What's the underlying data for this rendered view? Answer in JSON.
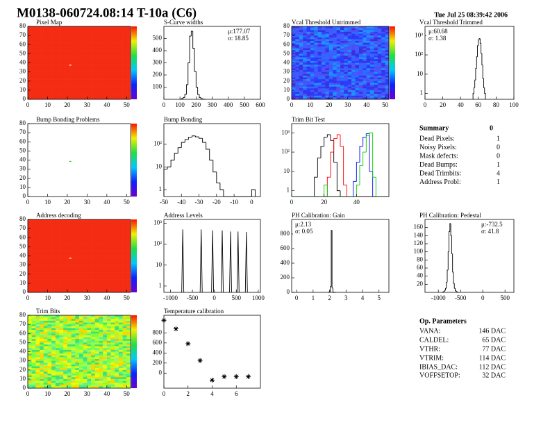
{
  "header": {
    "title": "M0138-060724.08:14 T-10a (C6)",
    "date": "Tue Jul 25 08:39:42 2006"
  },
  "chart_data": [
    {
      "type": "heatmap",
      "title": "Pixel Map",
      "xlim": [
        0,
        52
      ],
      "ylim": [
        0,
        80
      ],
      "xticks": [
        0,
        10,
        20,
        30,
        40,
        50
      ],
      "yticks": [
        0,
        10,
        20,
        30,
        40,
        50,
        60,
        70,
        80
      ],
      "colors": [
        "#f42c14"
      ],
      "colorbar": true,
      "marked": [
        {
          "x": 21,
          "y": 37,
          "color": "#ffffff"
        }
      ]
    },
    {
      "type": "histogram",
      "title": "S-Curve widths",
      "xlim": [
        0,
        600
      ],
      "ylim": [
        0,
        600
      ],
      "xticks": [
        0,
        100,
        200,
        300,
        400,
        500,
        600
      ],
      "yticks": [
        100,
        200,
        300,
        400,
        500
      ],
      "bins": [
        100,
        110,
        120,
        130,
        140,
        150,
        160,
        170,
        180,
        190,
        200,
        210,
        220,
        230,
        240,
        250,
        260
      ],
      "values": [
        2,
        5,
        15,
        40,
        120,
        300,
        520,
        560,
        420,
        230,
        100,
        40,
        15,
        6,
        2,
        1
      ],
      "color": "#000000",
      "stats": [
        "μ:177.07",
        "σ: 18.85"
      ],
      "stats_corner": "top-right"
    },
    {
      "type": "heatmap",
      "title": "Vcal Threshold Untrimmed",
      "xlim": [
        0,
        52
      ],
      "ylim": [
        0,
        80
      ],
      "xticks": [
        0,
        10,
        20,
        30,
        40,
        50
      ],
      "yticks": [
        0,
        10,
        20,
        30,
        40,
        50,
        60,
        70,
        80
      ],
      "colors": [
        "#2a3cff",
        "#3d5bff",
        "#2b6bff",
        "#4e4ff0",
        "#1e90ff",
        "#3a30e0"
      ],
      "colorbar": true,
      "marked": []
    },
    {
      "type": "histogram",
      "title": "Vcal Threshold Trimmed",
      "yscale": "log",
      "xlim": [
        0,
        100
      ],
      "ylim": [
        0.5,
        3000
      ],
      "xticks": [
        0,
        20,
        40,
        60,
        80,
        100
      ],
      "yticks": [
        1,
        10,
        {
          "value": 100,
          "label": "10²"
        },
        {
          "value": 1000,
          "label": "10³"
        }
      ],
      "bins": [
        54,
        55,
        56,
        57,
        58,
        59,
        60,
        61,
        62,
        63,
        64,
        65,
        66,
        67,
        68
      ],
      "values": [
        1,
        2,
        5,
        20,
        80,
        300,
        600,
        700,
        400,
        120,
        30,
        6,
        2,
        1
      ],
      "color": "#000000",
      "stats": [
        "μ:60.68",
        "σ: 1.38"
      ],
      "stats_corner": "top-left"
    },
    {
      "type": "heatmap",
      "title": "Bump Bonding Problems",
      "xlim": [
        0,
        52
      ],
      "ylim": [
        0,
        80
      ],
      "xticks": [
        0,
        10,
        20,
        30,
        40,
        50
      ],
      "yticks": [
        0,
        10,
        20,
        30,
        40,
        50,
        60,
        70,
        80
      ],
      "colors": [],
      "colorbar": true,
      "marked": [
        {
          "x": 21,
          "y": 38,
          "color": "#33cc33"
        }
      ]
    },
    {
      "type": "histogram",
      "title": "Bump Bonding",
      "yscale": "log",
      "xlim": [
        -50,
        5
      ],
      "ylim": [
        0.5,
        800
      ],
      "xticks": [
        -50,
        -40,
        -30,
        -20,
        -10,
        0
      ],
      "yticks": [
        1,
        10,
        {
          "value": 100,
          "label": "10²"
        }
      ],
      "bins": [
        -50,
        -48,
        -46,
        -44,
        -42,
        -40,
        -38,
        -36,
        -34,
        -32,
        -30,
        -28,
        -26,
        -24,
        -22,
        -20,
        -18,
        -16,
        -14,
        -12,
        -10,
        -8,
        -6,
        -4,
        -2,
        0,
        2
      ],
      "values": [
        8,
        10,
        20,
        40,
        70,
        120,
        160,
        200,
        230,
        210,
        180,
        120,
        60,
        20,
        6,
        2,
        1,
        0,
        0,
        0,
        0,
        0,
        0,
        0,
        0,
        1
      ],
      "color": "#000000"
    },
    {
      "type": "histogram",
      "title": "Trim Bit Test",
      "yscale": "log",
      "xlim": [
        0,
        60
      ],
      "ylim": [
        0.5,
        3000
      ],
      "xticks": [
        0,
        20,
        40
      ],
      "yticks": [
        1,
        10,
        {
          "value": 100,
          "label": "10²"
        },
        {
          "value": 1000,
          "label": "10³"
        }
      ],
      "bins": [
        0,
        2,
        4,
        6,
        8,
        10,
        12,
        14,
        16,
        18,
        20,
        22,
        24,
        26,
        28,
        30,
        32,
        34,
        36,
        38,
        40,
        42,
        44,
        46,
        48,
        50,
        52,
        54,
        56,
        58,
        60
      ],
      "series": [
        {
          "color": "#000000",
          "values": [
            0,
            0,
            0,
            0,
            0,
            0,
            0,
            5,
            50,
            200,
            600,
            800,
            400,
            30,
            1,
            0,
            0,
            0,
            0,
            0,
            0,
            0,
            0,
            0,
            0,
            0,
            0,
            0,
            0,
            0
          ]
        },
        {
          "color": "#ff0000",
          "values": [
            0,
            0,
            0,
            0,
            0,
            0,
            0,
            0,
            0,
            0,
            0,
            5,
            100,
            500,
            800,
            200,
            2,
            0,
            0,
            0,
            0,
            0,
            0,
            0,
            0,
            0,
            0,
            0,
            0,
            0
          ]
        },
        {
          "color": "#0000ff",
          "values": [
            0,
            0,
            0,
            0,
            0,
            0,
            0,
            0,
            0,
            0,
            0,
            0,
            0,
            0,
            0,
            0,
            0,
            0,
            0,
            3,
            30,
            200,
            600,
            900,
            10,
            0,
            0,
            0,
            0,
            0
          ]
        },
        {
          "color": "#00cc00",
          "values": [
            0,
            0,
            0,
            0,
            0,
            0,
            0,
            0,
            0,
            0,
            2,
            0,
            0,
            0,
            0,
            0,
            0,
            0,
            0,
            0,
            2,
            20,
            100,
            700,
            1000,
            5,
            0,
            0,
            0,
            0
          ]
        }
      ]
    },
    {
      "type": "heatmap",
      "title": "Address decoding",
      "xlim": [
        0,
        52
      ],
      "ylim": [
        0,
        80
      ],
      "xticks": [
        0,
        10,
        20,
        30,
        40,
        50
      ],
      "yticks": [
        0,
        10,
        20,
        30,
        40,
        50,
        60,
        70,
        80
      ],
      "colors": [
        "#f42c14"
      ],
      "colorbar": true,
      "marked": [
        {
          "x": 21,
          "y": 37,
          "color": "#ffffff"
        }
      ]
    },
    {
      "type": "spikes",
      "title": "Address Levels",
      "yscale": "log",
      "xlim": [
        -1150,
        1050
      ],
      "ylim": [
        0.5,
        1500
      ],
      "xticks": [
        -1000,
        -500,
        0,
        500,
        1000
      ],
      "yticks": [
        1,
        10,
        {
          "value": 100,
          "label": "10²"
        },
        {
          "value": 1000,
          "label": "10³"
        }
      ],
      "x": [
        -720,
        -300,
        -40,
        180,
        370,
        540,
        730
      ],
      "values": [
        500,
        500,
        450,
        450,
        400,
        400,
        380
      ],
      "color": "#000000"
    },
    {
      "type": "histogram",
      "title": "PH Calibration: Gain",
      "xlim": [
        -0.3,
        5.6
      ],
      "ylim": [
        0,
        1000
      ],
      "xticks": [
        0,
        1,
        2,
        3,
        4,
        5
      ],
      "yticks": [
        0,
        200,
        400,
        600,
        800
      ],
      "bins": [
        1.9,
        1.95,
        2.0,
        2.05,
        2.1,
        2.15,
        2.2,
        2.25,
        2.3,
        2.35,
        2.4
      ],
      "values": [
        0,
        2,
        10,
        80,
        850,
        60,
        5,
        1,
        0,
        0
      ],
      "color": "#000000",
      "stats": [
        "μ:2.13",
        "σ: 0.05"
      ],
      "stats_corner": "top-left"
    },
    {
      "type": "histogram",
      "title": "PH Calibration: Pedestal",
      "xlim": [
        -1300,
        700
      ],
      "ylim": [
        0,
        180
      ],
      "xticks": [
        -1000,
        -500,
        0,
        500
      ],
      "yticks": [
        20,
        40,
        60,
        80,
        100,
        120,
        140,
        160
      ],
      "bins": [
        -900,
        -880,
        -860,
        -840,
        -820,
        -800,
        -780,
        -760,
        -740,
        -720,
        -700,
        -680,
        -660,
        -640,
        -620,
        -600,
        -580,
        -560
      ],
      "values": [
        1,
        2,
        5,
        10,
        25,
        55,
        100,
        150,
        170,
        140,
        95,
        50,
        22,
        10,
        4,
        2,
        1
      ],
      "color": "#000000",
      "stats": [
        "μ:-732.5",
        "σ: 41.8"
      ],
      "stats_corner": "top-right"
    },
    {
      "type": "heatmap",
      "title": "Trim Bits",
      "xlim": [
        0,
        52
      ],
      "ylim": [
        0,
        80
      ],
      "xticks": [
        0,
        10,
        20,
        30,
        40,
        50
      ],
      "yticks": [
        0,
        10,
        20,
        30,
        40,
        50,
        60,
        70,
        80
      ],
      "colors": [
        "#7fff3a",
        "#b8ff20",
        "#40e070",
        "#e6ff10",
        "#9aff55",
        "#5cf08a",
        "#ffd400"
      ],
      "colorbar": true,
      "marked": []
    },
    {
      "type": "scatter",
      "title": "Temperature calibration",
      "xlim": [
        0,
        8
      ],
      "ylim": [
        -300,
        1150
      ],
      "xticks": [
        0,
        2,
        4,
        6
      ],
      "yticks": [
        0,
        200,
        400,
        600,
        800
      ],
      "x": [
        0,
        1,
        2,
        3,
        4,
        5,
        6,
        7
      ],
      "values": [
        1050,
        880,
        585,
        250,
        -140,
        -70,
        -70,
        -70
      ],
      "color": "#000000"
    }
  ],
  "summary": {
    "title": "Summary",
    "total": 0,
    "rows": [
      {
        "label": "Dead Pixels:",
        "value": 1
      },
      {
        "label": "Noisy Pixels:",
        "value": 0
      },
      {
        "label": "Mask defects:",
        "value": 0
      },
      {
        "label": "Dead Bumps:",
        "value": 1
      },
      {
        "label": "Dead Trimbits:",
        "value": 4
      },
      {
        "label": "Address Probl:",
        "value": 1
      }
    ]
  },
  "op_parameters": {
    "title": "Op. Parameters",
    "rows": [
      {
        "label": "VANA:",
        "value": "146 DAC"
      },
      {
        "label": "CALDEL:",
        "value": "65 DAC"
      },
      {
        "label": "VTHR:",
        "value": "77 DAC"
      },
      {
        "label": "VTRIM:",
        "value": "114 DAC"
      },
      {
        "label": "IBIAS_DAC:",
        "value": "112 DAC"
      },
      {
        "label": "VOFFSETOP:",
        "value": "32 DAC"
      }
    ]
  }
}
